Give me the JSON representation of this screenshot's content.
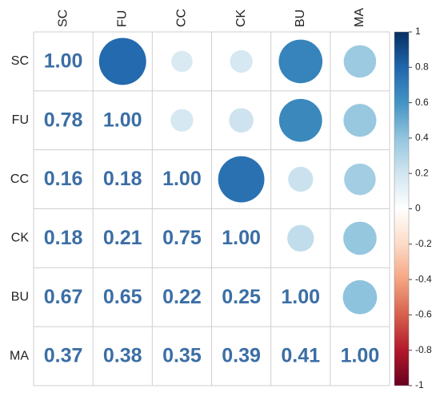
{
  "chart_data": {
    "type": "corrplot",
    "variables": [
      "SC",
      "FU",
      "CC",
      "CK",
      "BU",
      "MA"
    ],
    "values": [
      [
        1.0
      ],
      [
        0.78,
        1.0
      ],
      [
        0.16,
        0.18,
        1.0
      ],
      [
        0.18,
        0.21,
        0.75,
        1.0
      ],
      [
        0.67,
        0.65,
        0.22,
        0.25,
        1.0
      ],
      [
        0.37,
        0.38,
        0.35,
        0.39,
        0.41,
        1.0
      ]
    ],
    "value_labels": [
      [
        "1.00"
      ],
      [
        "0.78",
        "1.00"
      ],
      [
        "0.16",
        "0.18",
        "1.00"
      ],
      [
        "0.18",
        "0.21",
        "0.75",
        "1.00"
      ],
      [
        "0.67",
        "0.65",
        "0.22",
        "0.25",
        "1.00"
      ],
      [
        "0.37",
        "0.38",
        "0.35",
        "0.39",
        "0.41",
        "1.00"
      ]
    ],
    "number_color": "#3b6ea5",
    "colorscale": [
      "#67001f",
      "#b2182b",
      "#d6604d",
      "#f4a582",
      "#fddbc7",
      "#ffffff",
      "#d1e5f0",
      "#92c5de",
      "#4393c3",
      "#2166ac",
      "#053061"
    ],
    "clim": [
      -1,
      1
    ],
    "cticks": [
      -1,
      -0.8,
      -0.6,
      -0.4,
      -0.2,
      0,
      0.2,
      0.4,
      0.6,
      0.8,
      1
    ]
  }
}
